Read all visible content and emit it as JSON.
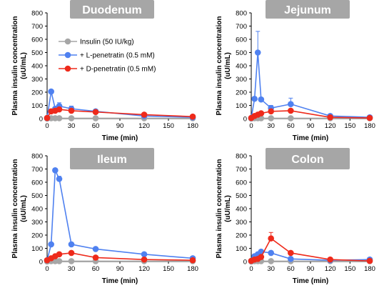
{
  "chart_data": [
    {
      "type": "line",
      "title": "Duodenum",
      "xlabel": "Time (min)",
      "ylabel": "Plasma insulin concentration\n(uU/mL)",
      "xlim": [
        0,
        180
      ],
      "ylim": [
        0,
        800
      ],
      "xticks": [
        0,
        30,
        60,
        90,
        120,
        150,
        180
      ],
      "yticks": [
        0,
        100,
        200,
        300,
        400,
        500,
        600,
        700,
        800
      ],
      "legend": "top-left",
      "series": [
        {
          "name": "Insulin (50 IU/kg)",
          "color": "#a6a6a6",
          "x": [
            0,
            5,
            10,
            15,
            30,
            60,
            120,
            180
          ],
          "y": [
            0,
            3,
            3,
            3,
            3,
            3,
            3,
            3
          ],
          "err": [
            0,
            0,
            0,
            0,
            0,
            0,
            0,
            0
          ]
        },
        {
          "name": "+ L-penetratin (0.5 mM)",
          "color": "#4f81f0",
          "x": [
            0,
            5,
            10,
            15,
            30,
            60,
            120,
            180
          ],
          "y": [
            5,
            205,
            75,
            95,
            75,
            55,
            20,
            10
          ],
          "err": [
            0,
            10,
            10,
            25,
            20,
            10,
            5,
            5
          ]
        },
        {
          "name": "+ D-penetratin (0.5 mM)",
          "color": "#ee2a1b",
          "x": [
            0,
            5,
            10,
            15,
            30,
            60,
            120,
            180
          ],
          "y": [
            5,
            55,
            60,
            70,
            60,
            50,
            30,
            15
          ],
          "err": [
            0,
            5,
            5,
            5,
            5,
            5,
            5,
            5
          ]
        }
      ]
    },
    {
      "type": "line",
      "title": "Jejunum",
      "xlabel": "Time (min)",
      "ylabel": "Plasma insulin concentration\n(uU/mL)",
      "xlim": [
        0,
        180
      ],
      "ylim": [
        0,
        800
      ],
      "xticks": [
        0,
        30,
        60,
        90,
        120,
        150,
        180
      ],
      "yticks": [
        0,
        100,
        200,
        300,
        400,
        500,
        600,
        700,
        800
      ],
      "series": [
        {
          "name": "Insulin (50 IU/kg)",
          "color": "#a6a6a6",
          "x": [
            0,
            5,
            10,
            15,
            30,
            60,
            120,
            180
          ],
          "y": [
            0,
            3,
            3,
            3,
            3,
            3,
            3,
            3
          ],
          "err": [
            0,
            0,
            0,
            0,
            0,
            0,
            0,
            0
          ]
        },
        {
          "name": "+ L-penetratin (0.5 mM)",
          "color": "#4f81f0",
          "x": [
            0,
            5,
            10,
            15,
            30,
            60,
            120,
            180
          ],
          "y": [
            5,
            150,
            500,
            145,
            80,
            110,
            20,
            10
          ],
          "err": [
            0,
            10,
            160,
            10,
            20,
            45,
            5,
            5
          ]
        },
        {
          "name": "+ D-penetratin (0.5 mM)",
          "color": "#ee2a1b",
          "x": [
            0,
            5,
            10,
            15,
            30,
            60,
            120,
            180
          ],
          "y": [
            5,
            20,
            30,
            40,
            55,
            60,
            10,
            5
          ],
          "err": [
            0,
            5,
            5,
            5,
            5,
            10,
            3,
            3
          ]
        }
      ]
    },
    {
      "type": "line",
      "title": "Ileum",
      "xlabel": "Time (min)",
      "ylabel": "Plasma insulin concentration\n(uU/mL)",
      "xlim": [
        0,
        180
      ],
      "ylim": [
        0,
        800
      ],
      "xticks": [
        0,
        30,
        60,
        90,
        120,
        150,
        180
      ],
      "yticks": [
        0,
        100,
        200,
        300,
        400,
        500,
        600,
        700,
        800
      ],
      "series": [
        {
          "name": "Insulin (50 IU/kg)",
          "color": "#a6a6a6",
          "x": [
            0,
            5,
            10,
            15,
            30,
            60,
            120,
            180
          ],
          "y": [
            0,
            3,
            3,
            3,
            3,
            3,
            3,
            3
          ],
          "err": [
            0,
            0,
            0,
            0,
            0,
            0,
            0,
            0
          ]
        },
        {
          "name": "+ L-penetratin (0.5 mM)",
          "color": "#4f81f0",
          "x": [
            0,
            5,
            10,
            15,
            30,
            60,
            120,
            180
          ],
          "y": [
            10,
            130,
            690,
            625,
            130,
            95,
            55,
            25
          ],
          "err": [
            0,
            10,
            10,
            20,
            10,
            10,
            5,
            5
          ]
        },
        {
          "name": "+ D-penetratin (0.5 mM)",
          "color": "#ee2a1b",
          "x": [
            0,
            5,
            10,
            15,
            30,
            60,
            120,
            180
          ],
          "y": [
            10,
            25,
            40,
            55,
            65,
            30,
            15,
            10
          ],
          "err": [
            0,
            5,
            5,
            5,
            5,
            5,
            3,
            3
          ]
        }
      ]
    },
    {
      "type": "line",
      "title": "Colon",
      "xlabel": "Time (min)",
      "ylabel": "Plasma insulin concentration\n(uU/mL)",
      "xlim": [
        0,
        180
      ],
      "ylim": [
        0,
        800
      ],
      "xticks": [
        0,
        30,
        60,
        90,
        120,
        150,
        180
      ],
      "yticks": [
        0,
        100,
        200,
        300,
        400,
        500,
        600,
        700,
        800
      ],
      "series": [
        {
          "name": "Insulin (50 IU/kg)",
          "color": "#a6a6a6",
          "x": [
            0,
            5,
            10,
            15,
            30,
            60,
            120,
            180
          ],
          "y": [
            0,
            3,
            3,
            3,
            3,
            3,
            3,
            3
          ],
          "err": [
            0,
            0,
            0,
            0,
            0,
            0,
            0,
            0
          ]
        },
        {
          "name": "+ L-penetratin (0.5 mM)",
          "color": "#4f81f0",
          "x": [
            0,
            5,
            10,
            15,
            30,
            60,
            120,
            180
          ],
          "y": [
            5,
            40,
            55,
            75,
            65,
            20,
            10,
            15
          ],
          "err": [
            0,
            5,
            5,
            10,
            10,
            5,
            3,
            3
          ]
        },
        {
          "name": "+ D-penetratin (0.5 mM)",
          "color": "#ee2a1b",
          "x": [
            0,
            5,
            10,
            15,
            30,
            60,
            120,
            180
          ],
          "y": [
            5,
            15,
            20,
            35,
            175,
            65,
            15,
            5
          ],
          "err": [
            0,
            5,
            5,
            10,
            45,
            10,
            5,
            3
          ]
        }
      ]
    }
  ]
}
